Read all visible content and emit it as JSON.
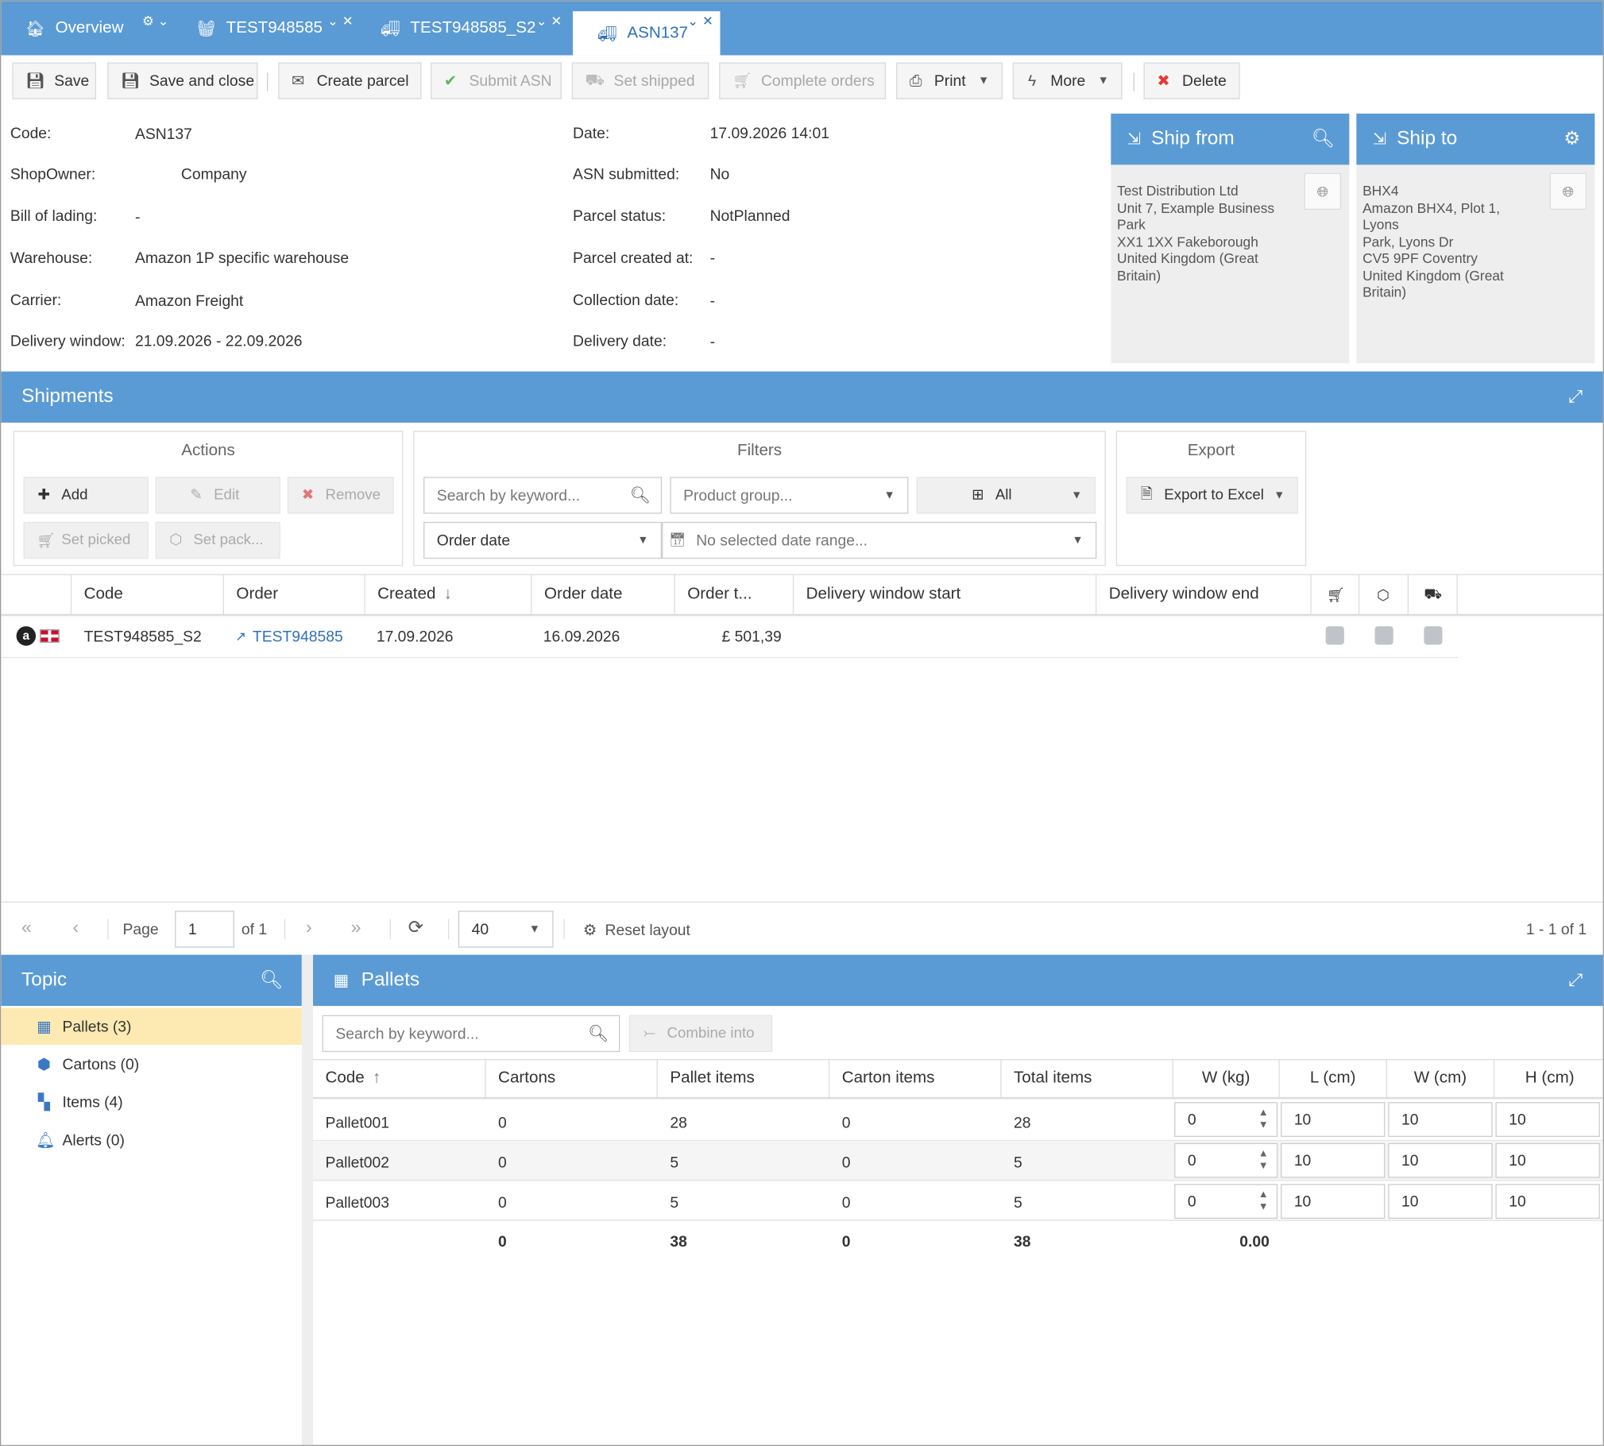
{
  "tabs": [
    {
      "label": "Overview"
    },
    {
      "label": "TEST948585"
    },
    {
      "label": "TEST948585_S2"
    },
    {
      "label": "ASN137"
    }
  ],
  "toolbar": {
    "save": "Save",
    "save_close": "Save and close",
    "create_parcel": "Create parcel",
    "submit_asn": "Submit ASN",
    "set_shipped": "Set shipped",
    "complete_orders": "Complete orders",
    "print": "Print",
    "more": "More",
    "delete": "Delete"
  },
  "details": {
    "code_label": "Code:",
    "code": "ASN137",
    "shopowner_label": "ShopOwner:",
    "shopowner": "Company",
    "bol_label": "Bill of lading:",
    "bol": "-",
    "warehouse_label": "Warehouse:",
    "warehouse": "Amazon 1P specific warehouse",
    "carrier_label": "Carrier:",
    "carrier": "Amazon Freight",
    "dw_label": "Delivery window:",
    "dw": "21.09.2026 - 22.09.2026",
    "date_label": "Date:",
    "date": "17.09.2026 14:01",
    "asn_label": "ASN submitted:",
    "asn": "No",
    "parcel_status_label": "Parcel status:",
    "parcel_status": "NotPlanned",
    "parcel_created_label": "Parcel created at:",
    "parcel_created": "-",
    "collection_label": "Collection date:",
    "collection": "-",
    "delivery_label": "Delivery date:",
    "delivery": "-"
  },
  "ship_from": {
    "title": "Ship from",
    "lines": [
      "Test Distribution Ltd",
      "Unit 7, Example Business",
      "Park",
      "XX1 1XX Fakeborough",
      "United Kingdom (Great",
      "Britain)"
    ]
  },
  "ship_to": {
    "title": "Ship to",
    "lines": [
      "BHX4",
      "Amazon BHX4, Plot 1, Lyons",
      "Park, Lyons Dr",
      "CV5 9PF Coventry",
      "United Kingdom (Great",
      "Britain)"
    ]
  },
  "shipments": {
    "title": "Shipments",
    "actions_title": "Actions",
    "add": "Add",
    "edit": "Edit",
    "remove": "Remove",
    "set_picked": "Set picked",
    "set_pack": "Set pack...",
    "filters_title": "Filters",
    "search_placeholder": "Search by keyword...",
    "product_group": "Product group...",
    "all": "All",
    "order_date": "Order date",
    "date_range": "No selected date range...",
    "export_title": "Export",
    "export_excel": "Export to Excel",
    "columns": [
      "Code",
      "Order",
      "Created",
      "Order date",
      "Order t...",
      "Delivery window start",
      "Delivery window end"
    ],
    "row": {
      "code": "TEST948585_S2",
      "order": "TEST948585",
      "created": "17.09.2026",
      "order_date": "16.09.2026",
      "order_total": "£ 501,39"
    }
  },
  "pager": {
    "page_label": "Page",
    "page": "1",
    "of": "of 1",
    "size": "40",
    "reset": "Reset layout",
    "range": "1 - 1 of 1"
  },
  "topic": {
    "title": "Topic",
    "items": [
      "Pallets (3)",
      "Cartons (0)",
      "Items (4)",
      "Alerts (0)"
    ]
  },
  "pallets": {
    "title": "Pallets",
    "search_placeholder": "Search by keyword...",
    "combine": "Combine into",
    "columns": [
      "Code",
      "Cartons",
      "Pallet items",
      "Carton items",
      "Total items",
      "W (kg)",
      "L (cm)",
      "W (cm)",
      "H (cm)"
    ],
    "rows": [
      {
        "code": "Pallet001",
        "cartons": "0",
        "pallet_items": "28",
        "carton_items": "0",
        "total": "28",
        "wkg": "0",
        "l": "10",
        "w": "10",
        "h": "10"
      },
      {
        "code": "Pallet002",
        "cartons": "0",
        "pallet_items": "5",
        "carton_items": "0",
        "total": "5",
        "wkg": "0",
        "l": "10",
        "w": "10",
        "h": "10"
      },
      {
        "code": "Pallet003",
        "cartons": "0",
        "pallet_items": "5",
        "carton_items": "0",
        "total": "5",
        "wkg": "0",
        "l": "10",
        "w": "10",
        "h": "10"
      }
    ],
    "totals": {
      "cartons": "0",
      "pallet_items": "38",
      "carton_items": "0",
      "total": "38",
      "wkg": "0.00"
    }
  },
  "colors": {
    "primary": "#5b9bd5",
    "highlight": "#fdeab2",
    "link": "#2f72b8",
    "delete": "#e53935",
    "check": "#5cb85c"
  }
}
